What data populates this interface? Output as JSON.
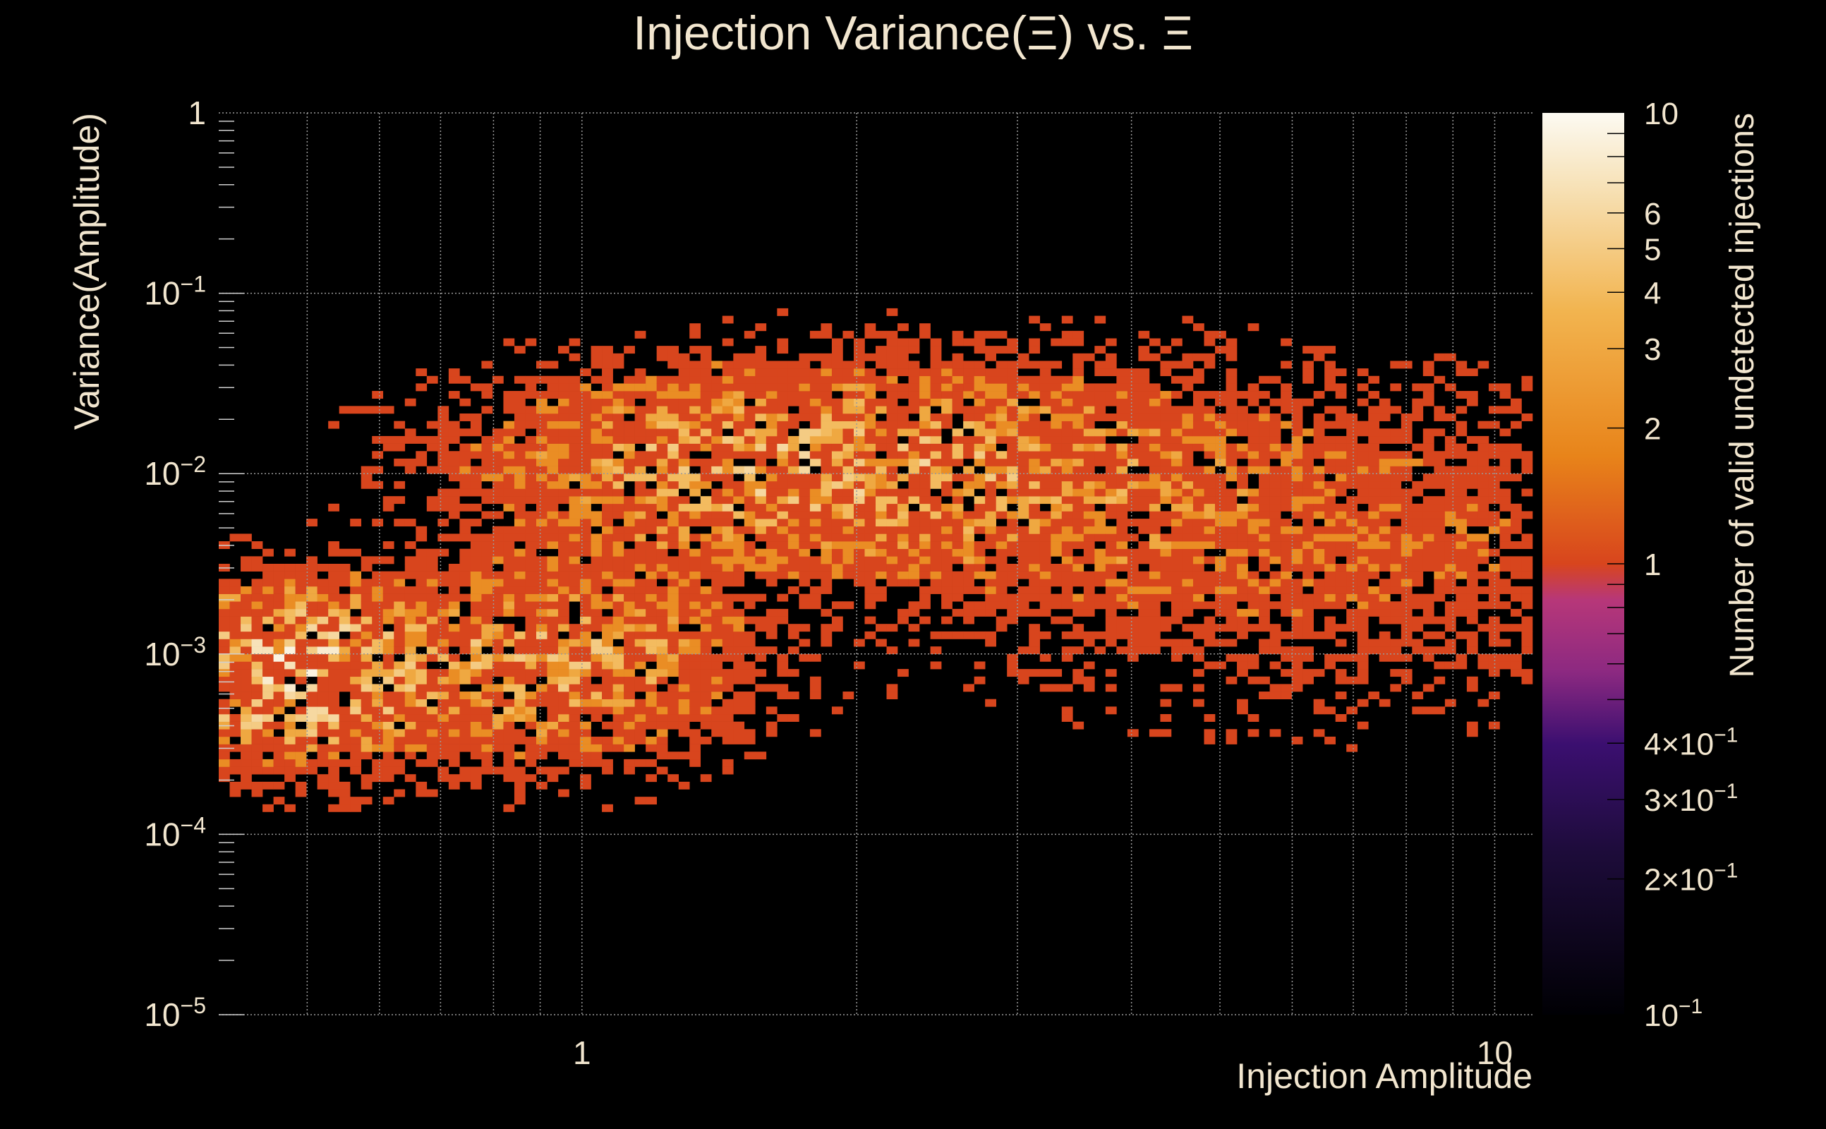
{
  "chart_data": {
    "type": "heatmap",
    "title": "Injection Variance(Ξ) vs. Ξ",
    "xlabel": "Injection Amplitude",
    "ylabel": "Variance(Amplitude)",
    "zlabel": "Number of valid undetected injections",
    "x_scale": "log",
    "y_scale": "log",
    "z_scale": "log",
    "xlim": [
      0.4,
      11
    ],
    "ylim": [
      1e-05,
      1
    ],
    "zlim": [
      0.1,
      10
    ],
    "grid": true,
    "colormap": [
      "#000004",
      "#3b0f70",
      "#8c2981",
      "#b73779",
      "#d8451d",
      "#e8841a",
      "#f2b44f",
      "#f7e2b8",
      "#fcfaf2"
    ],
    "x_tick_labels": [
      {
        "value": 1,
        "label": "1"
      },
      {
        "value": 10,
        "label": "10"
      }
    ],
    "y_tick_labels": [
      {
        "value": 1,
        "label": "1"
      },
      {
        "value": 0.1,
        "base": "10",
        "exp": "−1"
      },
      {
        "value": 0.01,
        "base": "10",
        "exp": "−2"
      },
      {
        "value": 0.001,
        "base": "10",
        "exp": "−3"
      },
      {
        "value": 0.0001,
        "base": "10",
        "exp": "−4"
      },
      {
        "value": 1e-05,
        "base": "10",
        "exp": "−5"
      }
    ],
    "z_tick_labels": [
      {
        "value": 10,
        "label": "10"
      },
      {
        "value": 6,
        "label": "6"
      },
      {
        "value": 5,
        "label": "5"
      },
      {
        "value": 4,
        "label": "4"
      },
      {
        "value": 3,
        "label": "3"
      },
      {
        "value": 2,
        "label": "2"
      },
      {
        "value": 1,
        "label": "1"
      },
      {
        "value": 0.4,
        "pre": "4×10",
        "exp": "−1"
      },
      {
        "value": 0.3,
        "pre": "3×10",
        "exp": "−1"
      },
      {
        "value": 0.2,
        "pre": "2×10",
        "exp": "−1"
      },
      {
        "value": 0.1,
        "pre": "10",
        "exp": "−1"
      }
    ],
    "bins": {
      "x_edges": [
        0.4,
        11
      ],
      "log_y_edges": [
        -5,
        0
      ],
      "nx": 120,
      "ny": 120
    },
    "density_clusters": [
      {
        "x": 0.48,
        "y": 0.0008,
        "sx": 0.09,
        "sy": 0.28,
        "peak": 9
      },
      {
        "x": 0.95,
        "y": 0.0009,
        "sx": 0.12,
        "sy": 0.32,
        "peak": 5
      },
      {
        "x": 1.45,
        "y": 0.012,
        "sx": 0.18,
        "sy": 0.3,
        "peak": 4
      },
      {
        "x": 2.6,
        "y": 0.01,
        "sx": 0.22,
        "sy": 0.35,
        "peak": 3
      },
      {
        "x": 6.5,
        "y": 0.004,
        "sx": 0.3,
        "sy": 0.55,
        "peak": 1.5
      }
    ]
  }
}
